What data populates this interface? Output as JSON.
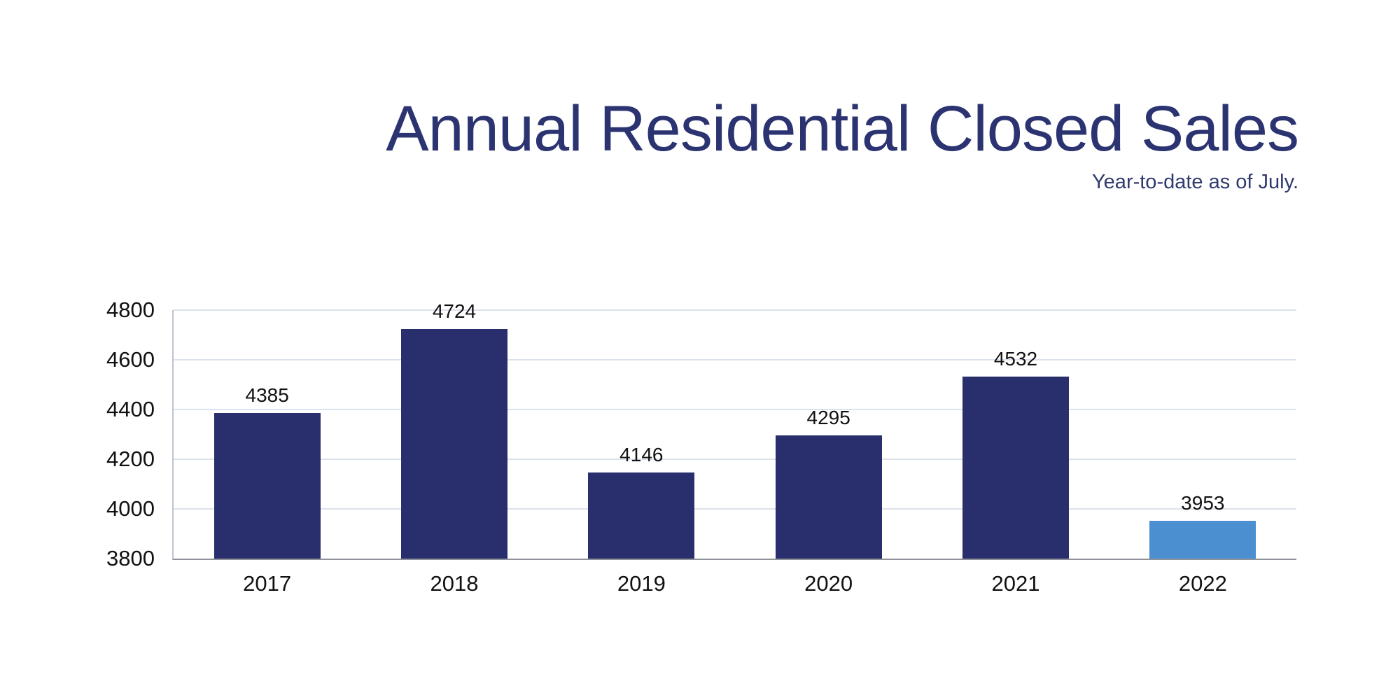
{
  "header": {
    "title": "Annual Residential Closed Sales",
    "subtitle": "Year-to-date as of July."
  },
  "chart_data": {
    "type": "bar",
    "title": "Annual Residential Closed Sales",
    "subtitle": "Year-to-date as of July.",
    "categories": [
      "2017",
      "2018",
      "2019",
      "2020",
      "2021",
      "2022"
    ],
    "values": [
      4385,
      4724,
      4146,
      4295,
      4532,
      3953
    ],
    "data_labels": [
      4385,
      4724,
      4146,
      4295,
      4532,
      3953
    ],
    "highlight_index": 5,
    "ylim": [
      3800,
      4800
    ],
    "yticks": [
      4800,
      4600,
      4400,
      4200,
      4000,
      3800
    ],
    "grid": true,
    "legend": "none",
    "xlabel": "",
    "ylabel": "",
    "colors": {
      "bar_default": "#292f6d",
      "bar_highlight": "#4b8fd1",
      "gridline": "#dce2ec",
      "bottom_axis_line": "#8f9399",
      "left_axis_line": "#bfc5cf",
      "title_text": "#2b3371",
      "subtitle_text": "#2f3a6e",
      "label_text": "#111111"
    }
  }
}
